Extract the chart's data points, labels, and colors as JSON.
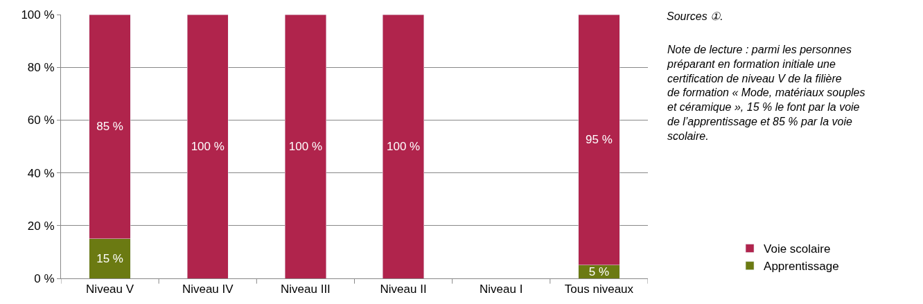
{
  "chart_data": {
    "type": "bar",
    "stacked": true,
    "categories": [
      "Niveau V",
      "Niveau IV",
      "Niveau III",
      "Niveau II",
      "Niveau I",
      "Tous niveaux"
    ],
    "series": [
      {
        "name": "Apprentissage",
        "color": "#6b7a12",
        "values": [
          15,
          0,
          0,
          0,
          null,
          5
        ],
        "value_labels": [
          "15 %",
          null,
          null,
          null,
          null,
          "5 %"
        ]
      },
      {
        "name": "Voie scolaire",
        "color": "#b0244c",
        "values": [
          85,
          100,
          100,
          100,
          null,
          95
        ],
        "value_labels": [
          "85 %",
          "100 %",
          "100 %",
          "100 %",
          null,
          "95 %"
        ]
      }
    ],
    "ylim": [
      0,
      100
    ],
    "yticks": [
      {
        "value": 0,
        "label": "0 %"
      },
      {
        "value": 20,
        "label": "20 %"
      },
      {
        "value": 40,
        "label": "40 %"
      },
      {
        "value": 60,
        "label": "60 %"
      },
      {
        "value": 80,
        "label": "80 %"
      },
      {
        "value": 100,
        "label": "100 %"
      }
    ],
    "grid": "y",
    "legend": "bottom right",
    "annotations": [
      "Sources ①.",
      "Note de lecture : parmi les personnes préparant en formation initiale une certification de niveau V de la filière de formation « Mode, matériaux souples et céramique », 15 % le font par la voie de l’apprentissage et 85 % par la voie scolaire."
    ]
  }
}
